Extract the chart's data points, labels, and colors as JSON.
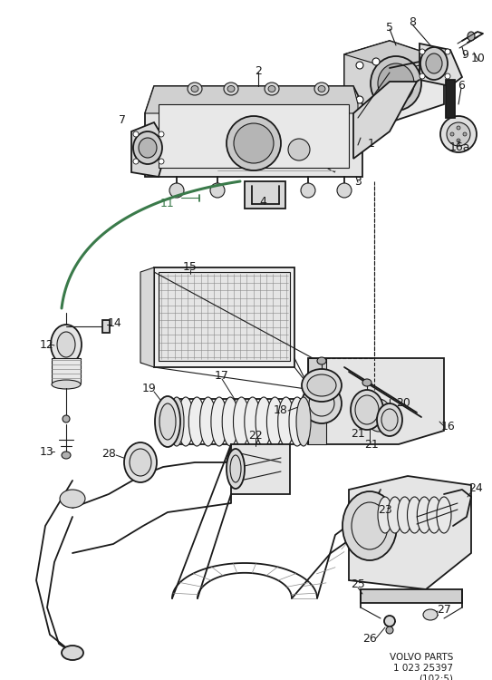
{
  "bg_color": "#ffffff",
  "fig_width": 5.43,
  "fig_height": 7.5,
  "dpi": 100,
  "watermark": "VOLVO PARTS\n1 023 25397\n(102:5)",
  "green_color": "#3a7a4a",
  "black": "#1a1a1a",
  "gray_light": "#d8d8d8",
  "gray_med": "#b0b0b0",
  "gray_dark": "#888888"
}
